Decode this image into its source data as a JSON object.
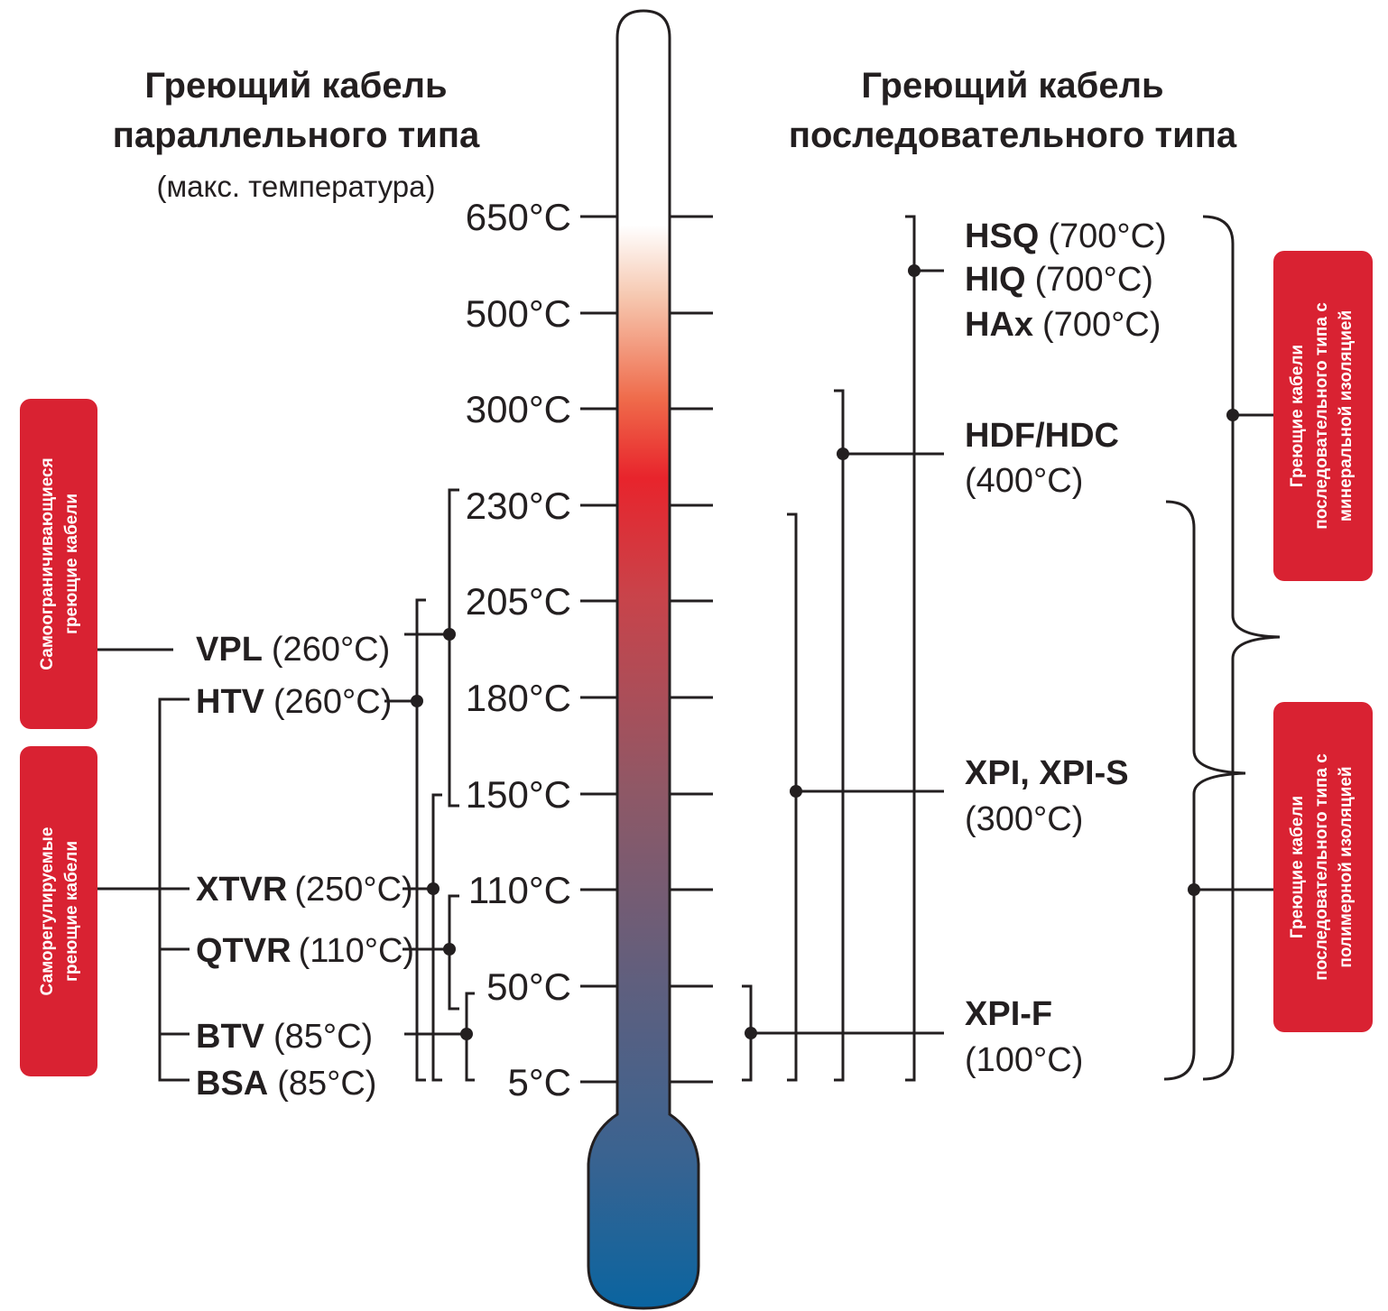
{
  "left_title": {
    "line1": "Греющий кабель",
    "line2": "параллельного типа",
    "subtitle": "(макс. температура)"
  },
  "right_title": {
    "line1": "Греющий кабель",
    "line2": "последовательного типа"
  },
  "scale": {
    "ticks": [
      "650°C",
      "500°C",
      "300°C",
      "230°C",
      "205°C",
      "180°C",
      "150°C",
      "110°C",
      "50°C",
      "5°C"
    ]
  },
  "left_boxes": [
    {
      "line1": "Самоограничивающиеся",
      "line2": "греющие кабели"
    },
    {
      "line1": "Саморегулируемые",
      "line2": "греющие кабели"
    }
  ],
  "left_cables": [
    {
      "name": "VPL",
      "temp": "(260°C)"
    },
    {
      "name": "HTV",
      "temp": "(260°C)"
    },
    {
      "name": "XTVR",
      "temp": "(250°C)"
    },
    {
      "name": "QTVR",
      "temp": "(110°C)"
    },
    {
      "name": "BTV",
      "temp": "(85°C)"
    },
    {
      "name": "BSA",
      "temp": "(85°C)"
    }
  ],
  "right_cables": {
    "hsq": {
      "name": "HSQ",
      "temp": "(700°C)"
    },
    "hiq": {
      "name": "HIQ",
      "temp": "(700°C)"
    },
    "hax": {
      "name": "HAx",
      "temp": "(700°C)"
    },
    "hdf": {
      "name": "HDF/HDC",
      "temp": "(400°C)"
    },
    "xpi": {
      "name": "XPI, XPI-S",
      "temp": "(300°C)"
    },
    "xpif": {
      "name": "XPI-F",
      "temp": "(100°C)"
    }
  },
  "right_boxes": [
    {
      "line1": "Греющие кабели",
      "line2": "последовательного типа с",
      "line3": "минеральной изоляцией"
    },
    {
      "line1": "Греющие кабели",
      "line2": "последовательного типа с",
      "line3": "полимерной изоляцией"
    }
  ],
  "colors": {
    "box_red": "#d92232",
    "thermo_top": "#ffffff",
    "thermo_red": "#e8242c",
    "thermo_blue": "#0a64a0",
    "ink": "#231f20"
  }
}
